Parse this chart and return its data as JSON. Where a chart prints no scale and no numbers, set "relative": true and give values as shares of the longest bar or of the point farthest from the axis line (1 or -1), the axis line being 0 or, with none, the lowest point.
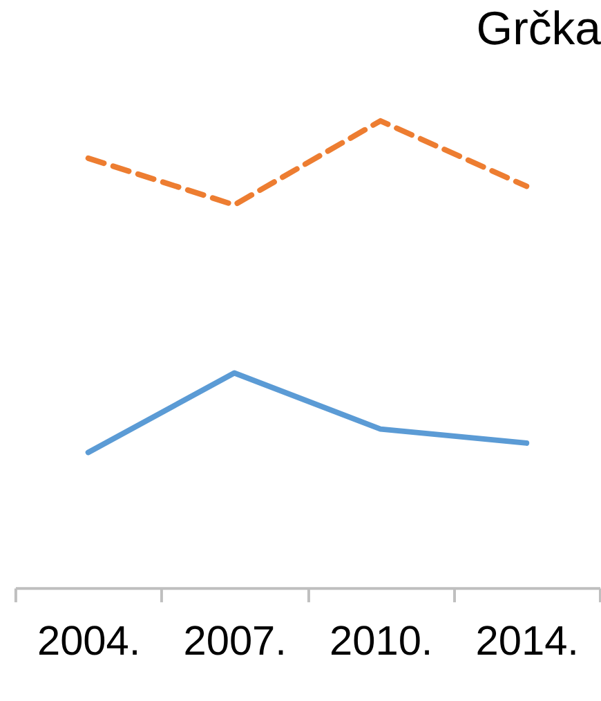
{
  "chart_data": {
    "type": "line",
    "title": "Grčka",
    "relative": true,
    "categories": [
      "2004.",
      "2007.",
      "2010.",
      "2014."
    ],
    "series": [
      {
        "color": "#5b9bd5",
        "line_style": "solid",
        "values": [
          0.29,
          0.46,
          0.34,
          0.31
        ]
      },
      {
        "color": "#ed7d31",
        "line_style": "dashed",
        "values": [
          0.92,
          0.82,
          1.0,
          0.86
        ]
      }
    ],
    "data_labels": false
  }
}
